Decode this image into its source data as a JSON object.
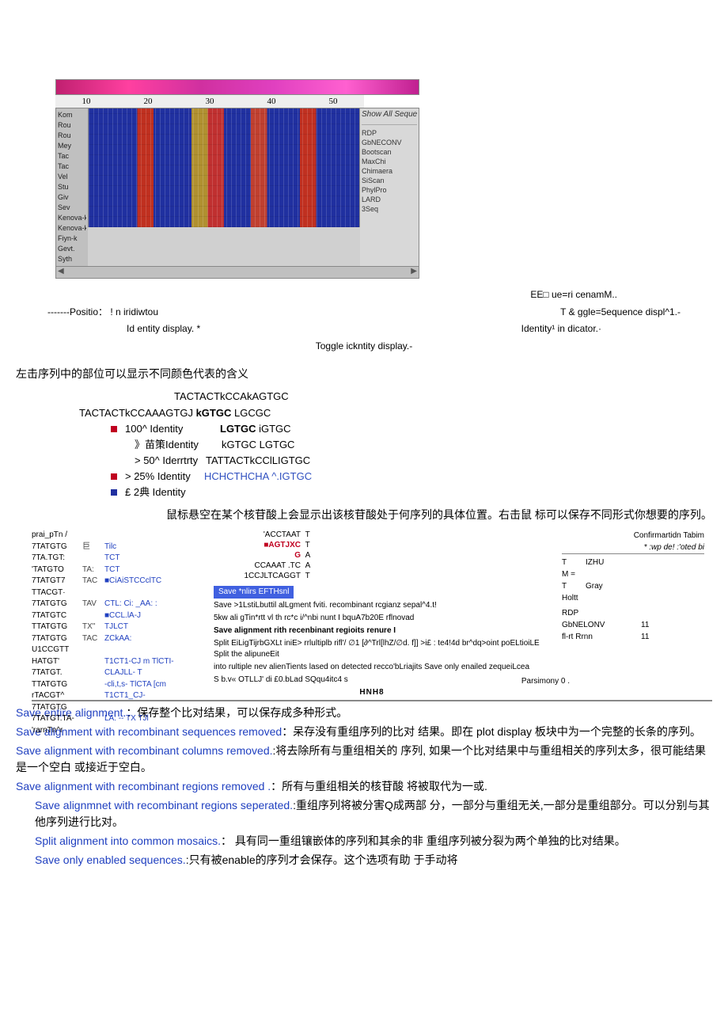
{
  "figure": {
    "scale_ticks": [
      "10",
      "20",
      "30",
      "40",
      "50"
    ],
    "side_top": "Show All Sequences",
    "left_names": [
      "Kom",
      "Rou",
      "Rou",
      "Mey",
      "Tac",
      "Tac",
      "Vel",
      "Stu",
      "Giv",
      "Sev",
      "Kenova-kc",
      "Kenova-kc",
      "Fiyn-k",
      "Gevt.",
      "Syth"
    ],
    "side_methods": [
      "RDP",
      "GbNECONV",
      "Bootscan",
      "MaxChi",
      "Chimaera",
      "SiScan",
      "PhylPro",
      "LARD",
      "3Seq"
    ],
    "lbl_eeu": "EE□  ue=ri cenamM..",
    "lbl_pos": "-------Positio： ! n iridiwtou",
    "lbl_toggle_seq": "T & ggle=5equence displ^1.-",
    "lbl_id_display": "Id entity display. *",
    "lbl_id_indic": "Identity¹ in dicator.·",
    "lbl_toggle_id": "Toggle ickntity display.-"
  },
  "para_click": "左击序列中的部位可以显示不同颜色代表的含义",
  "identity": {
    "line1": "TACTACTkCCAkAGTGC",
    "line2_a": "TACTACTkCCAAAGTGJ ",
    "line2_b": "kGTGC",
    "line2_c": " LGCGC",
    "row100_l": "100^ Identity",
    "row100_r_b": "LGTGC",
    "row100_r": " iGTGC",
    "row_cov_l": "》苗策Identity",
    "row_cov_r": "kGTGC LGTGC",
    "row50": "> 50^ Iderrtrty",
    "row50_seq": "TATTACTkCClLIGTGC",
    "row25": "> 25% Identity",
    "row25_seq": "HCHCTHCHA ^.IGTGC",
    "row_le": "£ 2典 Identity"
  },
  "para_hover": "鼠标悬空在某个核苷酸上会显示出该核苷酸处于何序列的具体位置。右击鼠 标可以保存不同形式你想要的序列。",
  "popup": {
    "left_rows": [
      [
        "prai_pTn /",
        "",
        ""
      ],
      [
        "7TATGTG",
        "巨",
        "Tilc"
      ],
      [
        "7TA.TGT:",
        "",
        "TCT"
      ],
      [
        "'TATGTO",
        "TA:",
        "TCT"
      ],
      [
        "7TATGT7",
        "TAC",
        "■CiAiSTCCclTC"
      ],
      [
        "TTACGT·",
        "",
        ""
      ],
      [
        "7TATGTG",
        "TAV",
        "CTL:  Ci:  _AA:  :"
      ],
      [
        "7TATGTC",
        "",
        "■CCL.lA-J"
      ],
      [
        "TTATGTG",
        "TX\"",
        "TJLCT"
      ],
      [
        "7TATGTG",
        "TAC",
        "ZCkAA:"
      ],
      [
        "U1CCGTT",
        "",
        ""
      ],
      [
        "HATGT'",
        "",
        "T1CT1-CJ m TlCTI-"
      ],
      [
        "7TATGT.",
        "",
        "CLAJLL- T"
      ],
      [
        "TTATGTG",
        "",
        "-cli,t,s-  TlCTA  [cm"
      ],
      [
        "rTACGT^",
        "",
        "T1CT1_CJ-"
      ],
      [
        "7TATGTG",
        "",
        ""
      ],
      [
        "7TATGT.TA-",
        "",
        "LA:   -- TX TJl"
      ],
      [
        "'rarnTn^r",
        "",
        ""
      ]
    ],
    "mid_header": [
      "'ACCTAAT",
      "AGTJXC",
      "G",
      "CCAAAT .TC",
      "1CCJLTCAGGT"
    ],
    "mid_right_letters": [
      "T",
      "T",
      "A",
      "A",
      "T"
    ],
    "blue_bar": "Save *nlirs EFTHsnl",
    "menu": [
      "Save >1LstiLbuttil alLgment fviti. recombinant rcgianz sepal^4.t!",
      "5kw ali gTin*rtt vl th rc*c i/^nbi nunt I bquA7b20E rflnovad",
      "Save alignment rith recenbinant regioits renure I",
      "Split EiLigTijrbGXLt iniE> rrlultiplb rifl'/ ∅1 [∂^Trl[lhZ/∅d. f]] >i£ : te4!4d br^dq>oint poELtioiLE Split the alipuneEit",
      "into rultiple nev alienTients lased on detected recco'bLriajits Save only enailed zequeiLcea",
      "S b.v« OTLLJ' di £0.bLad SQqu4itc4 s"
    ],
    "right_header": "Confirmartidn Tabim",
    "right_sub": "* :wp de! :'oted bi",
    "right_pairs": [
      [
        "T",
        "IZHU"
      ],
      [
        "M =",
        ""
      ],
      [
        "T",
        "Gray"
      ],
      [
        "Holtt",
        ""
      ]
    ],
    "method_rows": [
      [
        "RDP",
        ""
      ],
      [
        "GbNELONV",
        "11"
      ],
      [
        "fl-rt Rrnn",
        "11"
      ]
    ],
    "parsimony": "Parsimony 0 .",
    "bottom_bar": "HNH8"
  },
  "save_items": [
    {
      "indent": false,
      "cmd": "Save entire alignment.",
      "sep": "：",
      "desc": "保存整个比对结果，可以保存成多种形式。"
    },
    {
      "indent": false,
      "cmd": "Save alignment with recombinant sequences removed",
      "sep": "：",
      "desc": "呆存没有重组序列的比对 结果。即在 plot display 板块中为一个完整的长条的序列。"
    },
    {
      "indent": false,
      "cmd": "Save alignment with recombinant columns removed.",
      "sep": ":",
      "desc": "将去除所有与重组相关的 序列, 如果一个比对结果中与重组相关的序列太多，很可能结果是一个空白 或接近于空白。"
    },
    {
      "indent": false,
      "cmd": "Save alignment with recombinant regions removed .",
      "sep": "：",
      "desc": "所有与重组相关的核苷酸 将被取代为一或."
    },
    {
      "indent": true,
      "cmd": "Save alignmnet with recombinant regions seperated.",
      "sep": ":",
      "desc": "重组序列将被分害Q成两部 分，一部分与重组无关,一部分是重组部分。可以分别与其他序列进行比对。"
    },
    {
      "indent": true,
      "cmd": "Split alignment into common mosaics.",
      "sep": "：",
      "desc": " 具有同一重组镶嵌体的序列和其余的非 重组序列被分裂为两个单独的比对结果。"
    },
    {
      "indent": true,
      "cmd": "Save only enabled sequences.",
      "sep": ":",
      "desc": "只有被enable的序列才会保存。这个选项有助 于手动将"
    }
  ]
}
